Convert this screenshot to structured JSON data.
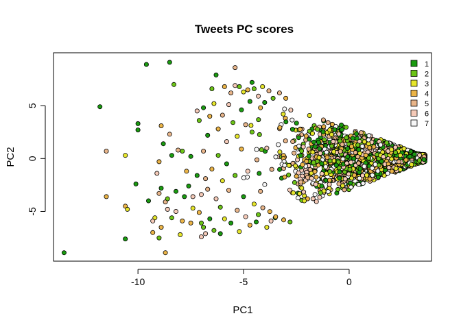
{
  "chart_data": {
    "type": "scatter",
    "title": "Tweets PC scores",
    "xlabel": "PC1",
    "ylabel": "PC2",
    "xlim": [
      -14,
      3.9
    ],
    "ylim": [
      -9.7,
      10
    ],
    "x_ticks": [
      -10,
      -5,
      0
    ],
    "y_ticks": [
      -5,
      0,
      5
    ],
    "grid": false,
    "legend_position": "top-right",
    "legend": [
      {
        "label": "1",
        "color": "#1a9a10"
      },
      {
        "label": "2",
        "color": "#6cc417"
      },
      {
        "label": "3",
        "color": "#e6e62b"
      },
      {
        "label": "4",
        "color": "#ebb447"
      },
      {
        "label": "5",
        "color": "#e8b58a"
      },
      {
        "label": "6",
        "color": "#f5cab8"
      },
      {
        "label": "7",
        "color": "#f7f7f7"
      }
    ],
    "dense_region": {
      "description_polygon_pc": [
        [
          -4,
          4.5
        ],
        [
          -2,
          5.6
        ],
        [
          3.7,
          -0.9
        ],
        [
          -2,
          -6.2
        ],
        [
          -4,
          -5.0
        ],
        [
          -4.5,
          0
        ]
      ],
      "point_count": 3200
    },
    "scattered_points": [
      [
        -13.5,
        -8.9,
        1
      ],
      [
        -11.8,
        4.9,
        1
      ],
      [
        -11.5,
        0.7,
        5
      ],
      [
        -11.5,
        -3.6,
        4
      ],
      [
        -10.6,
        0.3,
        3
      ],
      [
        -10.6,
        -4.5,
        4
      ],
      [
        -10.6,
        -7.6,
        1
      ],
      [
        -10.5,
        -4.8,
        3
      ],
      [
        -10.1,
        -2.4,
        1
      ],
      [
        -10.0,
        2.7,
        1
      ],
      [
        -10.0,
        3.3,
        1
      ],
      [
        -9.6,
        8.9,
        1
      ],
      [
        -9.5,
        -4.0,
        1
      ],
      [
        -9.3,
        -5.9,
        6
      ],
      [
        -9.3,
        -7.0,
        4
      ],
      [
        -9.2,
        -5.6,
        3
      ],
      [
        -9.1,
        -1.4,
        6
      ],
      [
        -9.0,
        -7.5,
        2
      ],
      [
        -9.0,
        -3.3,
        5
      ],
      [
        -9.0,
        -0.3,
        4
      ],
      [
        -8.9,
        3.1,
        4
      ],
      [
        -8.9,
        -6.5,
        4
      ],
      [
        -8.9,
        -2.8,
        1
      ],
      [
        -8.8,
        1.4,
        1
      ],
      [
        -8.7,
        -8.9,
        4
      ],
      [
        -8.7,
        -4.1,
        5
      ],
      [
        -8.6,
        -3.8,
        2
      ],
      [
        -8.6,
        -4.8,
        6
      ],
      [
        -8.5,
        9.1,
        1
      ],
      [
        -8.5,
        2.3,
        5
      ],
      [
        -8.4,
        0.3,
        1
      ],
      [
        -8.4,
        -5.6,
        2
      ],
      [
        -8.3,
        7.0,
        2
      ],
      [
        -8.2,
        -3.1,
        1
      ],
      [
        -8.2,
        -5.0,
        6
      ],
      [
        -8.1,
        0.8,
        5
      ],
      [
        -8.0,
        -7.2,
        3
      ],
      [
        -7.9,
        -5.9,
        4
      ],
      [
        -7.9,
        0.7,
        2
      ],
      [
        -7.8,
        -3.6,
        1
      ],
      [
        -7.7,
        -1.2,
        4
      ],
      [
        -7.6,
        -2.6,
        1
      ],
      [
        -7.5,
        -6.1,
        4
      ],
      [
        -7.5,
        0.2,
        1
      ],
      [
        -7.4,
        -3.6,
        6
      ],
      [
        -7.4,
        -4.7,
        3
      ],
      [
        -7.2,
        -1.6,
        1
      ],
      [
        -7.2,
        4.5,
        6
      ],
      [
        -7.1,
        -5.1,
        4
      ],
      [
        -7.1,
        3.6,
        2
      ],
      [
        -7.0,
        -7.4,
        6
      ],
      [
        -7.0,
        -3.4,
        6
      ],
      [
        -7.0,
        -6.1,
        2
      ],
      [
        -6.9,
        0.7,
        5
      ],
      [
        -6.9,
        -6.5,
        2
      ],
      [
        -6.9,
        4.8,
        1
      ],
      [
        -6.8,
        -1.9,
        5
      ],
      [
        -6.8,
        -7.1,
        6
      ],
      [
        -6.7,
        2.2,
        1
      ],
      [
        -6.7,
        -2.9,
        5
      ],
      [
        -6.6,
        4.0,
        4
      ],
      [
        -6.6,
        -5.7,
        1
      ],
      [
        -6.5,
        6.6,
        2
      ],
      [
        -6.5,
        -1.0,
        4
      ],
      [
        -6.4,
        5.2,
        3
      ],
      [
        -6.4,
        -6.8,
        2
      ],
      [
        -6.3,
        7.9,
        1
      ],
      [
        -6.3,
        -3.8,
        6
      ],
      [
        -6.2,
        0.3,
        2
      ],
      [
        -6.2,
        2.8,
        4
      ],
      [
        -6.1,
        -7.1,
        1
      ],
      [
        -6.1,
        -4.6,
        2
      ],
      [
        -6.0,
        4.1,
        5
      ],
      [
        -6.0,
        -2.1,
        3
      ],
      [
        -5.9,
        6.8,
        4
      ],
      [
        -5.9,
        -5.7,
        3
      ],
      [
        -5.8,
        -0.5,
        1
      ],
      [
        -5.8,
        1.6,
        6
      ],
      [
        -5.7,
        5.1,
        6
      ],
      [
        -5.7,
        -3.0,
        5
      ],
      [
        -5.6,
        6.2,
        5
      ],
      [
        -5.6,
        -6.1,
        1
      ],
      [
        -5.5,
        3.4,
        2
      ],
      [
        -5.4,
        8.6,
        5
      ],
      [
        -5.4,
        6.9,
        6
      ],
      [
        -5.4,
        -1.6,
        2
      ],
      [
        -5.3,
        2.1,
        3
      ],
      [
        -5.3,
        -4.9,
        5
      ],
      [
        -5.2,
        6.8,
        2
      ],
      [
        -5.2,
        -6.9,
        3
      ],
      [
        -5.1,
        4.6,
        1
      ],
      [
        -5.1,
        0.9,
        4
      ],
      [
        -5.0,
        -3.6,
        1
      ],
      [
        -5.0,
        6.3,
        3
      ],
      [
        -4.9,
        -5.5,
        6
      ],
      [
        -4.9,
        3.2,
        5
      ],
      [
        -4.8,
        -1.2,
        6
      ],
      [
        -4.8,
        6.5,
        4
      ],
      [
        -4.7,
        5.4,
        1
      ],
      [
        -4.7,
        -6.3,
        4
      ],
      [
        -4.6,
        7.2,
        1
      ],
      [
        -4.6,
        2.5,
        2
      ],
      [
        -4.5,
        -4.3,
        3
      ],
      [
        -4.5,
        6.6,
        2
      ],
      [
        -4.4,
        -6.0,
        1
      ],
      [
        -4.3,
        5.9,
        6
      ],
      [
        -4.3,
        -5.3,
        2
      ],
      [
        -4.2,
        4.8,
        4
      ],
      [
        -4.2,
        -3.1,
        5
      ],
      [
        -4.1,
        6.8,
        3
      ],
      [
        -4.0,
        5.3,
        1
      ],
      [
        -3.9,
        -6.5,
        3
      ],
      [
        -3.8,
        6.4,
        5
      ],
      [
        -3.7,
        -5.9,
        6
      ],
      [
        -3.6,
        5.7,
        2
      ],
      [
        -3.5,
        -5.6,
        1
      ],
      [
        -3.3,
        6.2,
        5
      ],
      [
        -3.1,
        -5.8,
        4
      ],
      [
        -3.0,
        5.7,
        4
      ],
      [
        -2.8,
        -6.0,
        2
      ]
    ]
  }
}
